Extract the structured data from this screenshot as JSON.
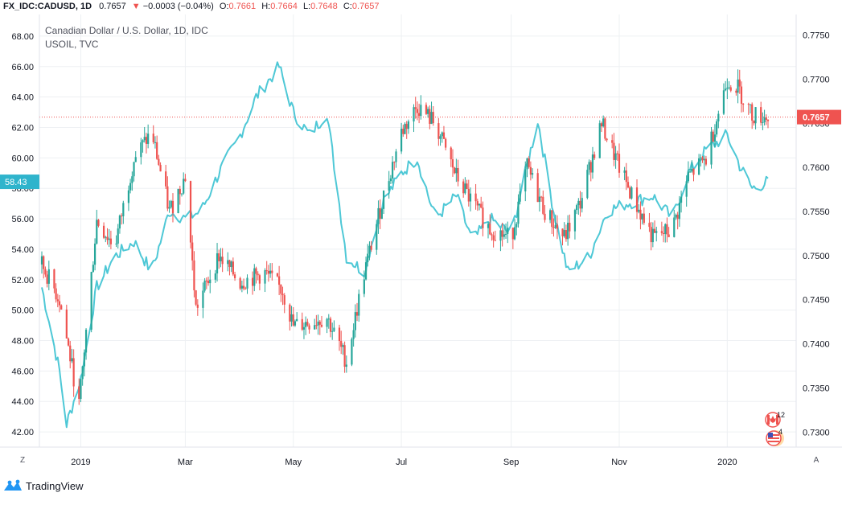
{
  "header": {
    "symbol": "FX_IDC:CADUSD, 1D",
    "last": "0.7657",
    "arrow": "▼",
    "change": "−0.0003 (−0.04%)",
    "o_label": "O:",
    "o_value": "0.7661",
    "h_label": "H:",
    "h_value": "0.7664",
    "l_label": "L:",
    "l_value": "0.7648",
    "c_label": "C:",
    "c_value": "0.7657"
  },
  "main_series_label": "Canadian Dollar / U.S. Dollar, 1D, IDC",
  "compare_series_label": "USOIL, TVC",
  "brand": {
    "name": "TradingView",
    "icon": "tradingview-logo-icon"
  },
  "axis_buttons": {
    "left": "Z",
    "right": "A"
  },
  "events": [
    {
      "icon": "canada-flag-event-icon",
      "count": "12"
    },
    {
      "icon": "us-flag-event-icon",
      "count": "4"
    }
  ],
  "colors": {
    "up": "#26a69a",
    "down": "#ef5350",
    "compare_line": "#4ec8d6",
    "price_tag": "#ef5350",
    "compare_tag": "#2fb4cc",
    "grid": "#eef0f3"
  },
  "chart_data": {
    "type": "candlestick",
    "title": "Canadian Dollar / U.S. Dollar, 1D, IDC",
    "x_ticks": [
      "2019",
      "Mar",
      "May",
      "Jul",
      "Sep",
      "Nov",
      "2020"
    ],
    "left_axis": {
      "ticks": [
        "42.00",
        "44.00",
        "46.00",
        "48.00",
        "50.00",
        "52.00",
        "54.00",
        "56.00",
        "58.00",
        "60.00",
        "62.00",
        "64.00",
        "66.00",
        "68.00"
      ],
      "range": [
        41,
        69
      ]
    },
    "right_axis": {
      "ticks": [
        "0.7300",
        "0.7350",
        "0.7400",
        "0.7450",
        "0.7500",
        "0.7550",
        "0.7600",
        "0.7650",
        "0.7700",
        "0.7750"
      ],
      "range": [
        0.7283,
        0.7766
      ]
    },
    "last_price": {
      "value": 0.7657,
      "label": "0.7657"
    },
    "compare_last": {
      "value": 58.43,
      "label": "58.43"
    },
    "cadusd_close_keypoints": [
      {
        "date": "2018-12-10",
        "value": 0.749
      },
      {
        "date": "2018-12-20",
        "value": 0.745
      },
      {
        "date": "2018-12-31",
        "value": 0.733
      },
      {
        "date": "2019-01-10",
        "value": 0.754
      },
      {
        "date": "2019-01-20",
        "value": 0.751
      },
      {
        "date": "2019-01-31",
        "value": 0.761
      },
      {
        "date": "2019-02-10",
        "value": 0.764
      },
      {
        "date": "2019-02-20",
        "value": 0.755
      },
      {
        "date": "2019-03-01",
        "value": 0.759
      },
      {
        "date": "2019-03-07",
        "value": 0.744
      },
      {
        "date": "2019-03-20",
        "value": 0.75
      },
      {
        "date": "2019-04-01",
        "value": 0.747
      },
      {
        "date": "2019-04-15",
        "value": 0.748
      },
      {
        "date": "2019-04-25",
        "value": 0.746
      },
      {
        "date": "2019-05-01",
        "value": 0.742
      },
      {
        "date": "2019-05-20",
        "value": 0.743
      },
      {
        "date": "2019-05-31",
        "value": 0.738
      },
      {
        "date": "2019-06-10",
        "value": 0.748
      },
      {
        "date": "2019-06-20",
        "value": 0.756
      },
      {
        "date": "2019-07-01",
        "value": 0.764
      },
      {
        "date": "2019-07-10",
        "value": 0.767
      },
      {
        "date": "2019-07-20",
        "value": 0.765
      },
      {
        "date": "2019-08-01",
        "value": 0.759
      },
      {
        "date": "2019-08-10",
        "value": 0.756
      },
      {
        "date": "2019-08-20",
        "value": 0.753
      },
      {
        "date": "2019-09-01",
        "value": 0.752
      },
      {
        "date": "2019-09-10",
        "value": 0.76
      },
      {
        "date": "2019-09-20",
        "value": 0.755
      },
      {
        "date": "2019-10-01",
        "value": 0.752
      },
      {
        "date": "2019-10-10",
        "value": 0.756
      },
      {
        "date": "2019-10-22",
        "value": 0.765
      },
      {
        "date": "2019-11-01",
        "value": 0.76
      },
      {
        "date": "2019-11-10",
        "value": 0.756
      },
      {
        "date": "2019-11-20",
        "value": 0.752
      },
      {
        "date": "2019-12-01",
        "value": 0.753
      },
      {
        "date": "2019-12-10",
        "value": 0.759
      },
      {
        "date": "2019-12-20",
        "value": 0.761
      },
      {
        "date": "2020-01-01",
        "value": 0.77
      },
      {
        "date": "2020-01-07",
        "value": 0.769
      },
      {
        "date": "2020-01-15",
        "value": 0.766
      },
      {
        "date": "2020-01-24",
        "value": 0.7657
      }
    ],
    "usoil_close_keypoints": [
      {
        "date": "2018-12-10",
        "value": 51.5
      },
      {
        "date": "2018-12-20",
        "value": 46.0
      },
      {
        "date": "2018-12-24",
        "value": 42.5
      },
      {
        "date": "2019-01-01",
        "value": 45.5
      },
      {
        "date": "2019-01-10",
        "value": 51.5
      },
      {
        "date": "2019-01-20",
        "value": 53.5
      },
      {
        "date": "2019-01-31",
        "value": 54.5
      },
      {
        "date": "2019-02-10",
        "value": 52.5
      },
      {
        "date": "2019-02-20",
        "value": 56.5
      },
      {
        "date": "2019-03-01",
        "value": 56.0
      },
      {
        "date": "2019-03-10",
        "value": 56.5
      },
      {
        "date": "2019-03-20",
        "value": 59.0
      },
      {
        "date": "2019-04-01",
        "value": 61.5
      },
      {
        "date": "2019-04-10",
        "value": 64.0
      },
      {
        "date": "2019-04-23",
        "value": 66.0
      },
      {
        "date": "2019-05-01",
        "value": 63.0
      },
      {
        "date": "2019-05-10",
        "value": 61.5
      },
      {
        "date": "2019-05-20",
        "value": 63.0
      },
      {
        "date": "2019-05-31",
        "value": 53.5
      },
      {
        "date": "2019-06-10",
        "value": 52.5
      },
      {
        "date": "2019-06-20",
        "value": 57.0
      },
      {
        "date": "2019-07-01",
        "value": 59.0
      },
      {
        "date": "2019-07-10",
        "value": 60.0
      },
      {
        "date": "2019-07-20",
        "value": 56.0
      },
      {
        "date": "2019-08-01",
        "value": 57.5
      },
      {
        "date": "2019-08-10",
        "value": 54.5
      },
      {
        "date": "2019-08-20",
        "value": 56.0
      },
      {
        "date": "2019-09-01",
        "value": 55.0
      },
      {
        "date": "2019-09-16",
        "value": 62.5
      },
      {
        "date": "2019-09-25",
        "value": 56.5
      },
      {
        "date": "2019-10-03",
        "value": 52.5
      },
      {
        "date": "2019-10-15",
        "value": 53.5
      },
      {
        "date": "2019-10-25",
        "value": 56.5
      },
      {
        "date": "2019-11-05",
        "value": 57.0
      },
      {
        "date": "2019-11-20",
        "value": 57.5
      },
      {
        "date": "2019-12-01",
        "value": 56.0
      },
      {
        "date": "2019-12-10",
        "value": 59.0
      },
      {
        "date": "2019-12-20",
        "value": 60.5
      },
      {
        "date": "2020-01-01",
        "value": 61.5
      },
      {
        "date": "2020-01-08",
        "value": 59.5
      },
      {
        "date": "2020-01-15",
        "value": 58.0
      },
      {
        "date": "2020-01-24",
        "value": 58.43
      }
    ]
  }
}
